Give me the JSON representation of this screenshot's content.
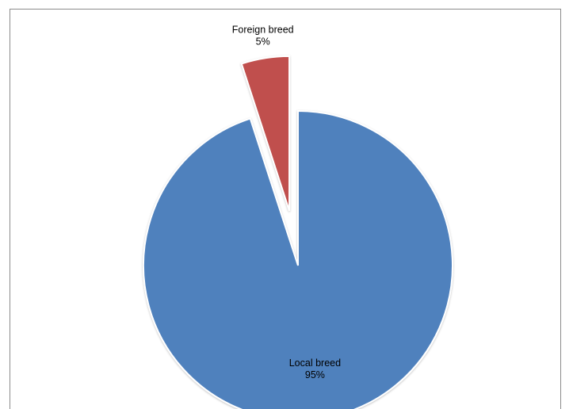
{
  "chart_data": {
    "type": "pie",
    "title": "",
    "slices": [
      {
        "label": "Local breed",
        "value": 95,
        "value_label": "95%",
        "color": "#4F81BD"
      },
      {
        "label": "Foreign breed",
        "value": 5,
        "value_label": "5%",
        "color": "#C0504D"
      }
    ],
    "exploded_slice": "Foreign breed",
    "legend": "none"
  }
}
